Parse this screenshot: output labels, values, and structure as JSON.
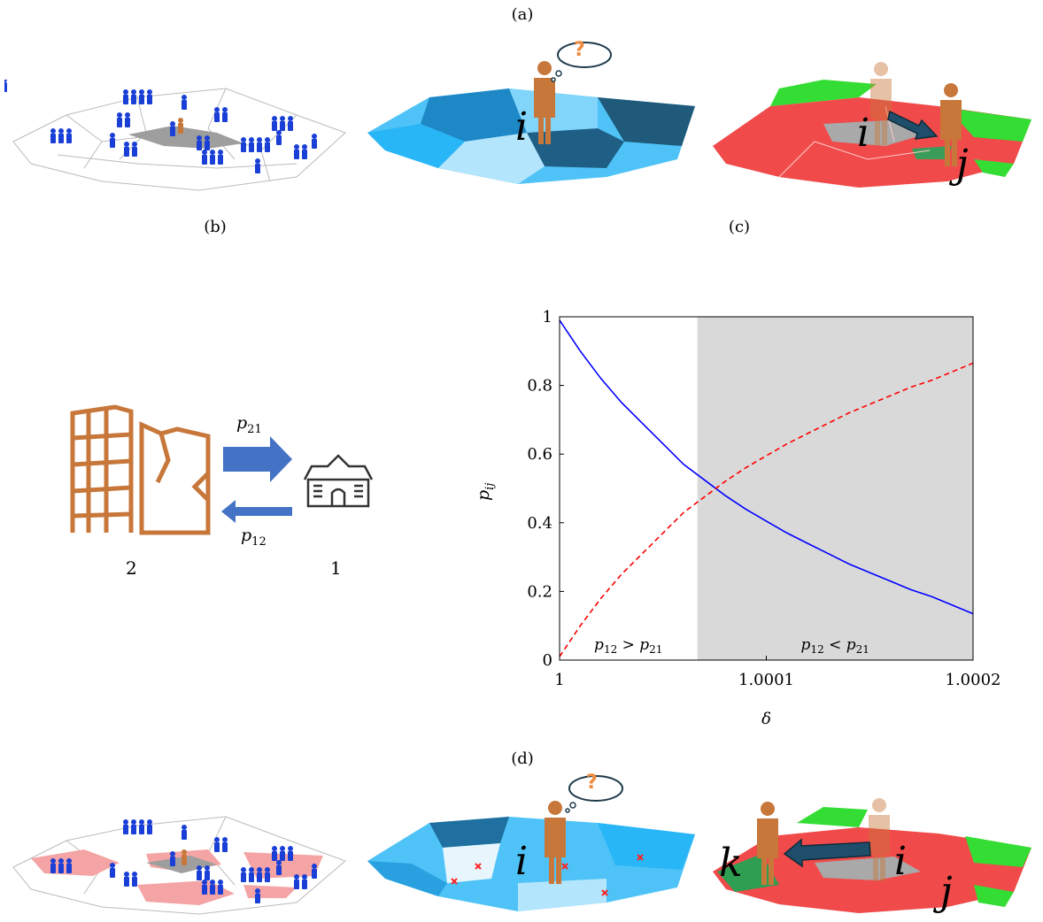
{
  "labels": {
    "a": "(a)",
    "b": "(b)",
    "c": "(c)",
    "d": "(d)"
  },
  "panel_a": {
    "map2_label_i": "i",
    "map3_label_i": "i",
    "map3_label_j": "j",
    "thought_symbol": "?"
  },
  "panel_b": {
    "arrow_top_label_base": "p",
    "arrow_top_label_sub": "21",
    "arrow_bottom_label_base": "p",
    "arrow_bottom_label_sub": "12",
    "building_number": "2",
    "house_number": "1",
    "colors": {
      "building": "#c8773a",
      "arrow": "#4472c4",
      "house": "#333333"
    }
  },
  "panel_d": {
    "map2_label_i": "i",
    "map3_label_k": "k",
    "map3_label_i": "i",
    "map3_label_j": "j",
    "thought_symbol": "?"
  },
  "chart_data": {
    "type": "line",
    "xlabel": "δ",
    "ylabel_base": "p",
    "ylabel_sub": "ij",
    "xlim": [
      1,
      1.0002
    ],
    "ylim": [
      0,
      1
    ],
    "x_ticks": [
      1,
      1.0001,
      1.0002
    ],
    "x_tick_labels": [
      "1",
      "1.0001",
      "1.0002"
    ],
    "y_ticks": [
      0,
      0.2,
      0.4,
      0.6,
      0.8,
      1
    ],
    "y_tick_labels": [
      "0",
      "0.2",
      "0.4",
      "0.6",
      "0.8",
      "1"
    ],
    "shaded_region": {
      "x_start": 1.00006667,
      "x_end": 1.0002,
      "color": "#d9d9d9"
    },
    "region_labels": [
      {
        "text_base": "p",
        "sub1": "12",
        "op": " > ",
        "sub2": "21",
        "x": 1.0000333
      },
      {
        "text_base": "p",
        "sub1": "12",
        "op": " < ",
        "sub2": "21",
        "x": 1.0001333
      }
    ],
    "series": [
      {
        "style": "solid",
        "color": "#0000ff",
        "x": [
          1,
          1.00001,
          1.00002,
          1.00003,
          1.00004,
          1.00005,
          1.00006,
          1.00007,
          1.00008,
          1.00009,
          1.0001,
          1.00011,
          1.00012,
          1.00013,
          1.00014,
          1.00015,
          1.00016,
          1.00017,
          1.00018,
          1.00019,
          1.0002
        ],
        "values": [
          0.99,
          0.9,
          0.82,
          0.75,
          0.69,
          0.63,
          0.57,
          0.525,
          0.48,
          0.44,
          0.405,
          0.37,
          0.34,
          0.31,
          0.28,
          0.255,
          0.23,
          0.205,
          0.185,
          0.16,
          0.135
        ]
      },
      {
        "style": "dashed",
        "color": "#ff0000",
        "x": [
          1,
          1.00001,
          1.00002,
          1.00003,
          1.00004,
          1.00005,
          1.00006,
          1.00007,
          1.00008,
          1.00009,
          1.0001,
          1.00011,
          1.00012,
          1.00013,
          1.00014,
          1.00015,
          1.00016,
          1.00017,
          1.00018,
          1.00019,
          1.0002
        ],
        "values": [
          0.01,
          0.1,
          0.18,
          0.25,
          0.31,
          0.37,
          0.43,
          0.475,
          0.52,
          0.56,
          0.595,
          0.63,
          0.66,
          0.69,
          0.72,
          0.745,
          0.77,
          0.795,
          0.815,
          0.84,
          0.865
        ]
      }
    ]
  }
}
